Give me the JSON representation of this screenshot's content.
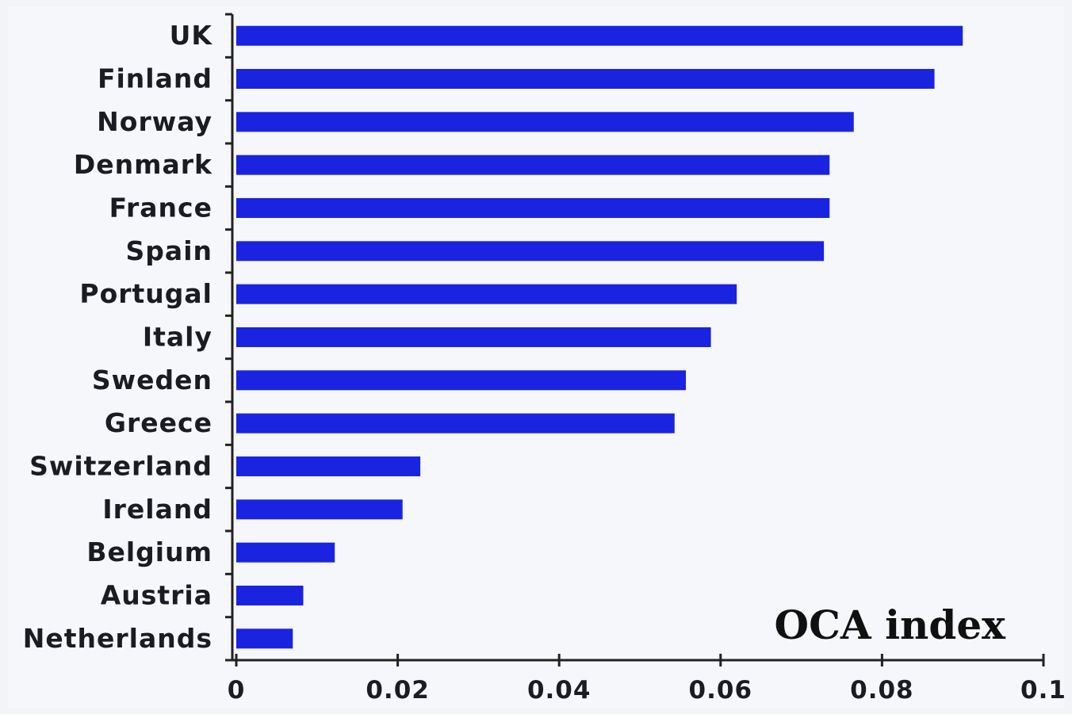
{
  "chart_data": {
    "type": "bar",
    "orientation": "horizontal",
    "title": "OCA index",
    "categories": [
      "UK",
      "Finland",
      "Norway",
      "Denmark",
      "France",
      "Spain",
      "Portugal",
      "Italy",
      "Sweden",
      "Greece",
      "Switzerland",
      "Ireland",
      "Belgium",
      "Austria",
      "Netherlands"
    ],
    "values": [
      0.09,
      0.0865,
      0.0765,
      0.0735,
      0.0735,
      0.0728,
      0.062,
      0.0588,
      0.0557,
      0.0543,
      0.0228,
      0.0206,
      0.0122,
      0.0083,
      0.007
    ],
    "xlim": [
      0,
      0.1
    ],
    "xticks": [
      0,
      0.02,
      0.04,
      0.06,
      0.08,
      0.1
    ],
    "xtick_labels": [
      "0",
      "0.02",
      "0.04",
      "0.06",
      "0.08",
      "0.1"
    ],
    "xlabel": "",
    "ylabel": "",
    "grid": false,
    "bar_color": "#1a23e0",
    "background_color": "#f3f4f8"
  }
}
